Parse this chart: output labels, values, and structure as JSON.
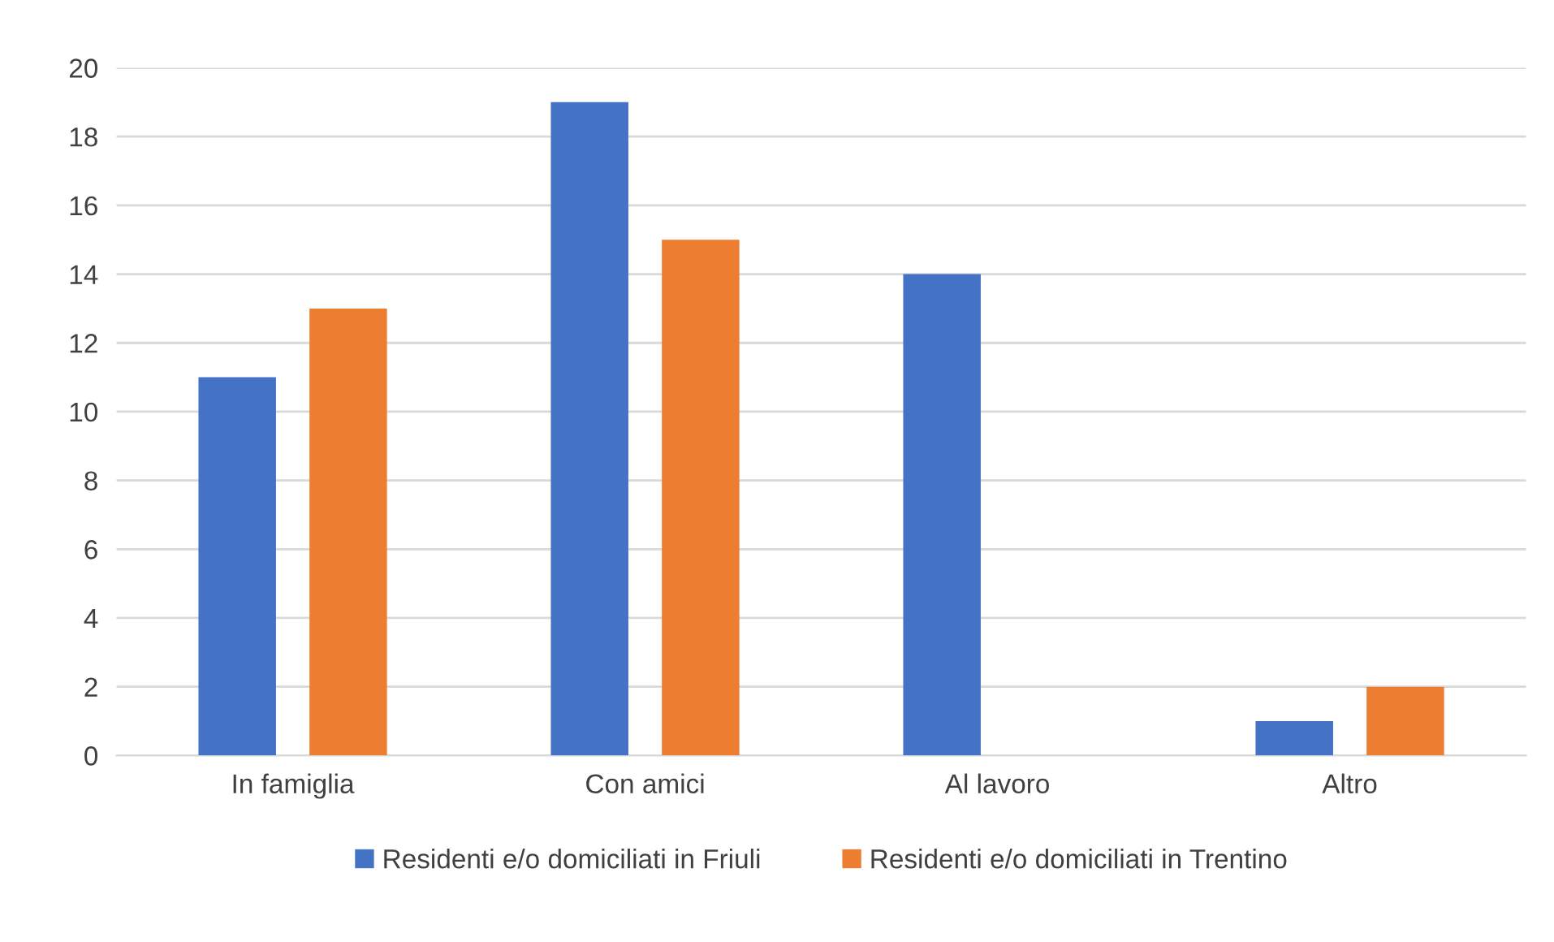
{
  "chart_data": {
    "type": "bar",
    "categories": [
      "In famiglia",
      "Con amici",
      "Al lavoro",
      "Altro"
    ],
    "series": [
      {
        "name": "Residenti e/o domiciliati in Friuli",
        "color": "#4472c4",
        "values": [
          11,
          19,
          14,
          1
        ]
      },
      {
        "name": "Residenti e/o domiciliati in Trentino",
        "color": "#ed7d31",
        "values": [
          13,
          15,
          0,
          2
        ]
      }
    ],
    "ylim": [
      0,
      20
    ],
    "yticks": [
      0,
      2,
      4,
      6,
      8,
      10,
      12,
      14,
      16,
      18,
      20
    ],
    "grid": "y",
    "legend": "bottom"
  }
}
